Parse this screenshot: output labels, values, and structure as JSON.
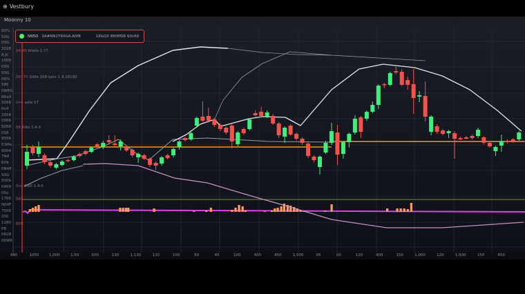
{
  "app": {
    "brand_icon": "globe-icon",
    "title": "Vestbury"
  },
  "toolbar": {
    "symbol_label": "Moonny 10"
  },
  "legend": {
    "status_color": "#4ef06e",
    "symbol": "N95D",
    "description": "3A#NN1T60GA.A0f8",
    "stats": "18&Q0 880MSB 60n68"
  },
  "y_axis_labels": [
    "90%",
    "50G",
    "00G",
    "2028",
    "A.JC",
    "1008",
    "00G",
    "50G",
    "06%",
    "585",
    "0W6S",
    "R6a9",
    "5058",
    "0n4",
    "2958",
    "0S66",
    "5058",
    "0S8",
    "9556",
    "53Ma",
    "9004",
    "7N4",
    "609",
    "0N48",
    "SSG",
    "5S0b",
    "0409",
    "05o",
    "1760",
    "N00F",
    "7S00",
    "2S0",
    "1280",
    "P8",
    "0R28",
    "00W8"
  ],
  "annotations": [
    {
      "marker": "84,40",
      "text": "bllaŀe 1.?7"
    },
    {
      "marker": "89770",
      "text": "0dlle 168 bars 1.3.18190"
    },
    {
      "marker": "0n4",
      "text": "adle 57"
    },
    {
      "marker": "88",
      "text": "0dls 1.4.0"
    },
    {
      "marker": "0ns",
      "text": "0dl0 1.4.0"
    }
  ],
  "markers": [
    "8A5",
    "8P8"
  ],
  "x_axis_labels": [
    "480",
    "1050",
    "1,000",
    "1,50",
    "500",
    "130",
    "1,130",
    "120",
    "100",
    "60",
    "40",
    "100",
    "400",
    "450",
    "1,500",
    "05",
    "00",
    "120",
    "400",
    "150",
    "1,000",
    "120",
    "1,500",
    "150",
    "450"
  ],
  "chart_data": {
    "type": "candlestick",
    "colors": {
      "up": "#3ef07a",
      "down": "#f4524a",
      "level": "#f39a1f",
      "ma_white": "#e6e6e6",
      "ma_gray": "#9a9aa0",
      "ma_pink": "#c98fc0",
      "volume": "#ff9c5c",
      "osc_green": "#6f9a2a",
      "osc_magenta": "#e040e6",
      "cursor": "#e0322e"
    },
    "grid": true,
    "candles": [
      [
        160,
        180,
        190,
        155
      ],
      [
        187,
        178,
        190,
        175
      ],
      [
        177,
        187,
        195,
        172
      ],
      [
        175,
        165,
        178,
        162
      ],
      [
        165,
        160,
        167,
        157
      ],
      [
        157,
        162,
        164,
        155
      ],
      [
        161,
        166,
        168,
        159
      ],
      [
        168,
        167,
        170,
        165
      ],
      [
        168,
        173,
        175,
        166
      ],
      [
        177,
        174,
        179,
        172
      ],
      [
        181,
        177,
        183,
        175
      ],
      [
        180,
        186,
        188,
        178
      ],
      [
        191,
        188,
        193,
        186
      ],
      [
        187,
        193,
        196,
        184
      ],
      [
        197,
        194,
        204,
        192
      ],
      [
        192,
        190,
        204,
        188
      ],
      [
        188,
        195,
        198,
        182
      ],
      [
        187,
        182,
        189,
        180
      ],
      [
        183,
        175,
        185,
        172
      ],
      [
        172,
        177,
        179,
        164
      ],
      [
        175,
        170,
        177,
        168
      ],
      [
        170,
        161,
        172,
        158
      ],
      [
        164,
        160,
        166,
        154
      ],
      [
        163,
        172,
        174,
        160
      ],
      [
        175,
        171,
        177,
        169
      ],
      [
        175,
        184,
        186,
        172
      ],
      [
        187,
        195,
        197,
        183
      ],
      [
        200,
        197,
        202,
        195
      ],
      [
        198,
        207,
        209,
        196
      ],
      [
        218,
        229,
        231,
        215
      ],
      [
        231,
        225,
        253,
        223
      ],
      [
        232,
        225,
        244,
        222
      ],
      [
        227,
        219,
        229,
        216
      ],
      [
        219,
        213,
        221,
        210
      ],
      [
        215,
        208,
        217,
        205
      ],
      [
        218,
        195,
        220,
        185
      ],
      [
        191,
        208,
        210,
        188
      ],
      [
        213,
        207,
        215,
        205
      ],
      [
        213,
        227,
        229,
        211
      ],
      [
        236,
        233,
        240,
        231
      ],
      [
        238,
        232,
        245,
        230
      ],
      [
        231,
        237,
        240,
        229
      ],
      [
        232,
        221,
        235,
        219
      ],
      [
        221,
        204,
        223,
        200
      ],
      [
        202,
        215,
        217,
        193
      ],
      [
        218,
        205,
        220,
        203
      ],
      [
        206,
        199,
        208,
        196
      ],
      [
        199,
        193,
        201,
        190
      ],
      [
        192,
        174,
        194,
        171
      ],
      [
        173,
        168,
        175,
        165
      ],
      [
        158,
        173,
        175,
        147
      ],
      [
        179,
        193,
        196,
        177
      ],
      [
        193,
        210,
        222,
        190
      ],
      [
        208,
        176,
        219,
        161
      ],
      [
        177,
        194,
        196,
        170
      ],
      [
        194,
        206,
        208,
        186
      ],
      [
        208,
        228,
        233,
        205
      ],
      [
        230,
        209,
        232,
        200
      ],
      [
        228,
        238,
        240,
        225
      ],
      [
        238,
        248,
        253,
        236
      ],
      [
        248,
        276,
        278,
        242
      ],
      [
        278,
        277,
        280,
        272
      ],
      [
        277,
        294,
        296,
        275
      ],
      [
        297,
        295,
        305,
        292
      ],
      [
        296,
        277,
        300,
        275
      ],
      [
        284,
        277,
        289,
        270
      ],
      [
        278,
        258,
        300,
        235
      ],
      [
        260,
        262,
        268,
        252
      ],
      [
        261,
        231,
        282,
        224
      ],
      [
        209,
        231,
        233,
        204
      ],
      [
        217,
        209,
        220,
        206
      ],
      [
        211,
        206,
        213,
        204
      ],
      [
        207,
        210,
        212,
        200
      ],
      [
        207,
        199,
        210,
        170
      ],
      [
        200,
        198,
        202,
        197
      ],
      [
        201,
        199,
        203,
        198
      ],
      [
        203,
        200,
        205,
        198
      ],
      [
        203,
        212,
        215,
        200
      ],
      [
        201,
        193,
        203,
        191
      ],
      [
        193,
        188,
        195,
        186
      ],
      [
        181,
        187,
        189,
        174
      ],
      [
        189,
        195,
        205,
        180
      ],
      [
        196,
        194,
        198,
        192
      ],
      [
        198,
        195,
        200,
        193
      ],
      [
        198,
        208,
        210,
        196
      ]
    ],
    "levels": [
      {
        "price": 187,
        "from": -1,
        "to": 52
      },
      {
        "price": 195,
        "from": 52,
        "to": 85
      }
    ],
    "lines": [
      {
        "color": "ma_white",
        "width": 1.4,
        "points": [
          [
            -0.1,
            168
          ],
          [
            5.1,
            170
          ],
          [
            7.2,
            195
          ],
          [
            10.7,
            240
          ],
          [
            14.3,
            280
          ],
          [
            19,
            305
          ],
          [
            24.9,
            327
          ],
          [
            29.6,
            332
          ],
          [
            34.3,
            330
          ]
        ]
      },
      {
        "color": "ma_gray",
        "width": 0.7,
        "points": [
          [
            34.3,
            330
          ],
          [
            40.2,
            324
          ],
          [
            46.1,
            321
          ],
          [
            52,
            320
          ]
        ]
      },
      {
        "color": "ma_gray",
        "width": 0.8,
        "points": [
          [
            32,
            227
          ],
          [
            33.5,
            255
          ],
          [
            36.7,
            288
          ],
          [
            40.2,
            308
          ],
          [
            44.9,
            325
          ],
          [
            52,
            320
          ],
          [
            60,
            316
          ],
          [
            68,
            312
          ]
        ]
      },
      {
        "color": "ma_gray",
        "width": 1,
        "points": [
          [
            -0.1,
            160
          ],
          [
            5.2,
            170
          ],
          [
            8.4,
            174
          ],
          [
            13.1,
            188
          ],
          [
            15.6,
            198
          ],
          [
            18.6,
            178
          ],
          [
            20.8,
            168
          ],
          [
            24.9,
            198
          ],
          [
            30.8,
            200
          ],
          [
            41.4,
            195
          ],
          [
            52,
            194
          ]
        ]
      },
      {
        "color": "ma_gray",
        "width": 1,
        "points": [
          [
            -0.5,
            130
          ],
          [
            2.5,
            142
          ],
          [
            6,
            153
          ],
          [
            9.6,
            160
          ]
        ]
      },
      {
        "color": "ma_white",
        "width": 1.3,
        "points": [
          [
            24.9,
            195
          ],
          [
            27.2,
            205
          ],
          [
            29.6,
            220
          ],
          [
            32,
            227
          ],
          [
            33.1,
            217
          ],
          [
            37.9,
            228
          ],
          [
            40.2,
            231
          ],
          [
            44.1,
            230
          ],
          [
            46.7,
            218
          ],
          [
            52,
            270
          ],
          [
            56.7,
            300
          ],
          [
            60.8,
            307
          ],
          [
            66.2,
            302
          ],
          [
            70.9,
            290
          ],
          [
            75.6,
            270
          ],
          [
            80.3,
            240
          ],
          [
            84.4,
            210
          ]
        ]
      },
      {
        "color": "ma_pink",
        "width": 1.3,
        "points": [
          [
            9.6,
            162
          ],
          [
            13.4,
            163
          ],
          [
            19,
            160
          ],
          [
            25.2,
            142
          ],
          [
            30.8,
            135
          ],
          [
            36.7,
            120
          ],
          [
            44.9,
            100
          ],
          [
            52,
            82
          ],
          [
            61.4,
            70
          ],
          [
            70.9,
            70
          ],
          [
            77.9,
            74
          ],
          [
            84.8,
            78
          ]
        ]
      }
    ],
    "volume": [
      [
        0.5,
        4
      ],
      [
        1,
        6
      ],
      [
        1.5,
        8
      ],
      [
        2,
        10
      ],
      [
        15.9,
        6
      ],
      [
        16.4,
        6
      ],
      [
        16.9,
        6
      ],
      [
        17.3,
        6
      ],
      [
        21.7,
        5
      ],
      [
        28.5,
        1
      ],
      [
        30.6,
        2
      ],
      [
        31.4,
        6
      ],
      [
        35,
        3
      ],
      [
        35.6,
        6
      ],
      [
        36.2,
        10
      ],
      [
        36.8,
        8
      ],
      [
        37.3,
        2
      ],
      [
        40.6,
        1
      ],
      [
        41.8,
        2
      ],
      [
        42.3,
        5
      ],
      [
        42.8,
        6
      ],
      [
        43.4,
        8
      ],
      [
        43.9,
        12
      ],
      [
        44.5,
        10
      ],
      [
        45,
        9
      ],
      [
        45.6,
        7
      ],
      [
        46.1,
        5
      ],
      [
        46.7,
        3
      ],
      [
        47.3,
        2
      ],
      [
        50.9,
        2
      ],
      [
        52,
        11
      ],
      [
        61.5,
        5
      ],
      [
        63.2,
        5
      ],
      [
        63.8,
        5
      ],
      [
        64.4,
        5
      ],
      [
        65,
        4
      ],
      [
        65.6,
        13
      ]
    ]
  }
}
